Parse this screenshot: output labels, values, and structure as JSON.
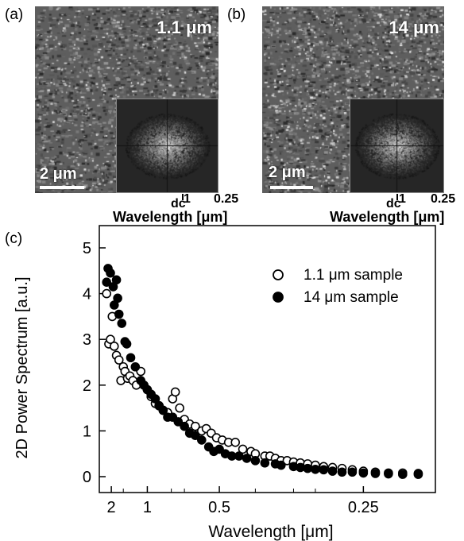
{
  "panels": {
    "a": {
      "label": "(a)",
      "sample": "1.1 μm",
      "scale_bar": "2 μm",
      "fft_ticks": [
        "dc",
        "1",
        "0.25"
      ],
      "fft_axis_title": "Wavelength [μm]"
    },
    "b": {
      "label": "(b)",
      "sample": "14 μm",
      "scale_bar": "2 μm",
      "fft_ticks": [
        "dc",
        "1",
        "0.25"
      ],
      "fft_axis_title": "Wavelength [μm]"
    },
    "c": {
      "label": "(c)"
    }
  },
  "chart_data": {
    "type": "scatter",
    "xlabel": "Wavelength [μm]",
    "ylabel": "2D Power Spectrum [a.u.]",
    "x_scale": "reciprocal",
    "x_ticks": [
      "2",
      "1",
      "0.5",
      "0.25"
    ],
    "y_ticks": [
      "0",
      "1",
      "2",
      "3",
      "4",
      "5"
    ],
    "ylim": [
      0,
      5
    ],
    "xlim_wavelength": [
      3.0,
      0.2
    ],
    "legend_position": "top-right",
    "series": [
      {
        "name": "1.1 μm sample",
        "marker": "open-circle",
        "points": [
          [
            2.3,
            4.0
          ],
          [
            2.15,
            2.9
          ],
          [
            2.05,
            3.0
          ],
          [
            1.95,
            3.5
          ],
          [
            1.85,
            2.85
          ],
          [
            1.75,
            2.65
          ],
          [
            1.65,
            2.55
          ],
          [
            1.58,
            2.1
          ],
          [
            1.5,
            2.4
          ],
          [
            1.45,
            2.3
          ],
          [
            1.38,
            2.15
          ],
          [
            1.32,
            2.2
          ],
          [
            1.25,
            2.1
          ],
          [
            1.18,
            2.0
          ],
          [
            1.1,
            2.3
          ],
          [
            1.05,
            2.0
          ],
          [
            1.0,
            1.9
          ],
          [
            0.95,
            1.75
          ],
          [
            0.9,
            1.6
          ],
          [
            0.86,
            1.55
          ],
          [
            0.82,
            1.45
          ],
          [
            0.78,
            1.4
          ],
          [
            0.74,
            1.7
          ],
          [
            0.72,
            1.85
          ],
          [
            0.69,
            1.5
          ],
          [
            0.66,
            1.25
          ],
          [
            0.63,
            1.15
          ],
          [
            0.6,
            1.1
          ],
          [
            0.57,
            1.0
          ],
          [
            0.55,
            1.05
          ],
          [
            0.53,
            0.95
          ],
          [
            0.51,
            0.85
          ],
          [
            0.49,
            0.8
          ],
          [
            0.47,
            0.75
          ],
          [
            0.45,
            0.75
          ],
          [
            0.43,
            0.6
          ],
          [
            0.41,
            0.55
          ],
          [
            0.4,
            0.5
          ],
          [
            0.38,
            0.45
          ],
          [
            0.37,
            0.45
          ],
          [
            0.36,
            0.4
          ],
          [
            0.35,
            0.35
          ],
          [
            0.34,
            0.35
          ],
          [
            0.33,
            0.32
          ],
          [
            0.32,
            0.3
          ],
          [
            0.31,
            0.28
          ],
          [
            0.3,
            0.25
          ],
          [
            0.29,
            0.22
          ],
          [
            0.28,
            0.2
          ],
          [
            0.27,
            0.18
          ],
          [
            0.26,
            0.15
          ],
          [
            0.25,
            0.12
          ],
          [
            0.24,
            0.1
          ],
          [
            0.23,
            0.08
          ],
          [
            0.22,
            0.08
          ],
          [
            0.21,
            0.07
          ]
        ]
      },
      {
        "name": "14 μm sample",
        "marker": "filled-circle",
        "points": [
          [
            2.2,
            4.55
          ],
          [
            2.3,
            4.25
          ],
          [
            2.05,
            4.45
          ],
          [
            1.9,
            4.15
          ],
          [
            1.85,
            3.75
          ],
          [
            1.75,
            4.3
          ],
          [
            1.7,
            3.9
          ],
          [
            1.65,
            3.55
          ],
          [
            1.55,
            3.35
          ],
          [
            1.45,
            2.95
          ],
          [
            1.4,
            2.9
          ],
          [
            1.3,
            2.6
          ],
          [
            1.2,
            2.4
          ],
          [
            1.1,
            2.1
          ],
          [
            1.05,
            2.0
          ],
          [
            1.0,
            1.9
          ],
          [
            0.95,
            1.8
          ],
          [
            0.9,
            1.7
          ],
          [
            0.86,
            1.55
          ],
          [
            0.82,
            1.45
          ],
          [
            0.78,
            1.3
          ],
          [
            0.74,
            1.3
          ],
          [
            0.7,
            1.2
          ],
          [
            0.66,
            1.1
          ],
          [
            0.63,
            0.95
          ],
          [
            0.6,
            0.9
          ],
          [
            0.57,
            0.8
          ],
          [
            0.54,
            0.65
          ],
          [
            0.52,
            0.55
          ],
          [
            0.5,
            0.6
          ],
          [
            0.48,
            0.5
          ],
          [
            0.46,
            0.45
          ],
          [
            0.44,
            0.45
          ],
          [
            0.42,
            0.4
          ],
          [
            0.4,
            0.35
          ],
          [
            0.38,
            0.3
          ],
          [
            0.36,
            0.28
          ],
          [
            0.35,
            0.25
          ],
          [
            0.33,
            0.22
          ],
          [
            0.32,
            0.2
          ],
          [
            0.31,
            0.18
          ],
          [
            0.3,
            0.16
          ],
          [
            0.29,
            0.15
          ],
          [
            0.28,
            0.12
          ],
          [
            0.27,
            0.1
          ],
          [
            0.26,
            0.1
          ],
          [
            0.25,
            0.08
          ],
          [
            0.24,
            0.07
          ],
          [
            0.23,
            0.06
          ],
          [
            0.22,
            0.05
          ],
          [
            0.21,
            0.05
          ]
        ]
      }
    ]
  }
}
